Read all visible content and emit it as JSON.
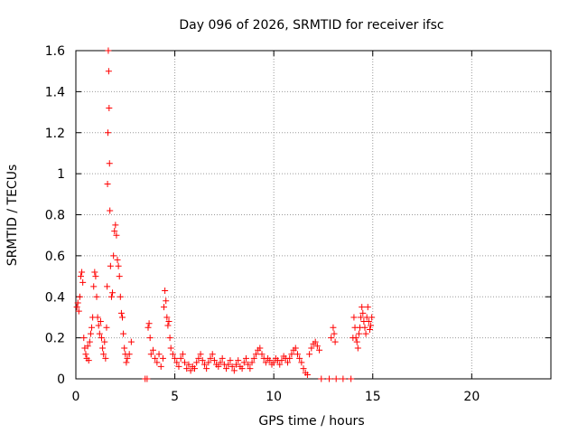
{
  "chart_data": {
    "type": "scatter",
    "title": "Day 096 of 2026, SRMTID for receiver ifsc",
    "xlabel": "GPS time / hours",
    "ylabel": "SRMTID / TECUs",
    "xlim": [
      0,
      24
    ],
    "ylim": [
      0,
      1.6
    ],
    "x_ticks": [
      0,
      5,
      10,
      15,
      20
    ],
    "y_ticks": [
      0,
      0.2,
      0.4,
      0.6,
      0.8,
      1,
      1.2,
      1.4,
      1.6
    ],
    "x_tick_labels": [
      "0",
      "5",
      "10",
      "15",
      "20"
    ],
    "y_tick_labels": [
      "0",
      "0.2",
      "0.4",
      "0.6",
      "0.8",
      "1",
      "1.2",
      "1.4",
      "1.6"
    ],
    "grid": true,
    "marker": "+",
    "color": "#ff0000",
    "series": [
      {
        "points": [
          [
            0.05,
            0.35
          ],
          [
            0.1,
            0.37
          ],
          [
            0.15,
            0.33
          ],
          [
            0.2,
            0.4
          ],
          [
            0.25,
            0.5
          ],
          [
            0.3,
            0.52
          ],
          [
            0.35,
            0.47
          ],
          [
            0.4,
            0.2
          ],
          [
            0.45,
            0.15
          ],
          [
            0.5,
            0.12
          ],
          [
            0.55,
            0.1
          ],
          [
            0.6,
            0.16
          ],
          [
            0.65,
            0.09
          ],
          [
            0.7,
            0.18
          ],
          [
            0.75,
            0.22
          ],
          [
            0.8,
            0.25
          ],
          [
            0.85,
            0.3
          ],
          [
            0.9,
            0.45
          ],
          [
            0.95,
            0.52
          ],
          [
            1.0,
            0.5
          ],
          [
            1.05,
            0.4
          ],
          [
            1.1,
            0.3
          ],
          [
            1.15,
            0.26
          ],
          [
            1.2,
            0.22
          ],
          [
            1.25,
            0.28
          ],
          [
            1.3,
            0.2
          ],
          [
            1.35,
            0.15
          ],
          [
            1.4,
            0.12
          ],
          [
            1.45,
            0.18
          ],
          [
            1.5,
            0.1
          ],
          [
            1.55,
            0.25
          ],
          [
            1.58,
            0.45
          ],
          [
            1.6,
            0.95
          ],
          [
            1.62,
            1.2
          ],
          [
            1.64,
            1.6
          ],
          [
            1.66,
            1.5
          ],
          [
            1.68,
            1.32
          ],
          [
            1.7,
            1.05
          ],
          [
            1.72,
            0.82
          ],
          [
            1.75,
            0.55
          ],
          [
            1.8,
            0.4
          ],
          [
            1.85,
            0.42
          ],
          [
            1.9,
            0.6
          ],
          [
            1.95,
            0.72
          ],
          [
            2.0,
            0.75
          ],
          [
            2.05,
            0.7
          ],
          [
            2.1,
            0.58
          ],
          [
            2.15,
            0.55
          ],
          [
            2.2,
            0.5
          ],
          [
            2.25,
            0.4
          ],
          [
            2.3,
            0.32
          ],
          [
            2.35,
            0.3
          ],
          [
            2.4,
            0.22
          ],
          [
            2.45,
            0.15
          ],
          [
            2.5,
            0.12
          ],
          [
            2.55,
            0.08
          ],
          [
            2.6,
            0.1
          ],
          [
            2.7,
            0.12
          ],
          [
            2.8,
            0.18
          ],
          [
            3.5,
            0.0
          ],
          [
            3.6,
            0.0
          ],
          [
            3.65,
            0.25
          ],
          [
            3.7,
            0.27
          ],
          [
            3.75,
            0.2
          ],
          [
            3.8,
            0.12
          ],
          [
            3.9,
            0.14
          ],
          [
            4.0,
            0.1
          ],
          [
            4.1,
            0.08
          ],
          [
            4.2,
            0.12
          ],
          [
            4.3,
            0.06
          ],
          [
            4.4,
            0.1
          ],
          [
            4.45,
            0.35
          ],
          [
            4.5,
            0.43
          ],
          [
            4.55,
            0.38
          ],
          [
            4.6,
            0.3
          ],
          [
            4.65,
            0.26
          ],
          [
            4.7,
            0.28
          ],
          [
            4.75,
            0.2
          ],
          [
            4.8,
            0.15
          ],
          [
            4.9,
            0.12
          ],
          [
            5.0,
            0.1
          ],
          [
            5.1,
            0.08
          ],
          [
            5.2,
            0.06
          ],
          [
            5.3,
            0.1
          ],
          [
            5.4,
            0.12
          ],
          [
            5.5,
            0.08
          ],
          [
            5.6,
            0.05
          ],
          [
            5.7,
            0.07
          ],
          [
            5.8,
            0.04
          ],
          [
            5.9,
            0.06
          ],
          [
            6.0,
            0.05
          ],
          [
            6.1,
            0.08
          ],
          [
            6.2,
            0.1
          ],
          [
            6.3,
            0.12
          ],
          [
            6.4,
            0.09
          ],
          [
            6.5,
            0.07
          ],
          [
            6.6,
            0.05
          ],
          [
            6.7,
            0.08
          ],
          [
            6.8,
            0.1
          ],
          [
            6.9,
            0.12
          ],
          [
            7.0,
            0.09
          ],
          [
            7.1,
            0.07
          ],
          [
            7.2,
            0.06
          ],
          [
            7.3,
            0.08
          ],
          [
            7.4,
            0.1
          ],
          [
            7.5,
            0.07
          ],
          [
            7.6,
            0.05
          ],
          [
            7.7,
            0.07
          ],
          [
            7.8,
            0.09
          ],
          [
            7.9,
            0.06
          ],
          [
            8.0,
            0.04
          ],
          [
            8.1,
            0.07
          ],
          [
            8.2,
            0.09
          ],
          [
            8.3,
            0.06
          ],
          [
            8.4,
            0.05
          ],
          [
            8.5,
            0.08
          ],
          [
            8.6,
            0.1
          ],
          [
            8.7,
            0.07
          ],
          [
            8.8,
            0.05
          ],
          [
            8.9,
            0.08
          ],
          [
            9.0,
            0.1
          ],
          [
            9.1,
            0.12
          ],
          [
            9.2,
            0.14
          ],
          [
            9.3,
            0.15
          ],
          [
            9.4,
            0.12
          ],
          [
            9.5,
            0.1
          ],
          [
            9.6,
            0.08
          ],
          [
            9.7,
            0.1
          ],
          [
            9.8,
            0.09
          ],
          [
            9.9,
            0.07
          ],
          [
            10.0,
            0.08
          ],
          [
            10.1,
            0.1
          ],
          [
            10.2,
            0.09
          ],
          [
            10.3,
            0.07
          ],
          [
            10.4,
            0.09
          ],
          [
            10.5,
            0.11
          ],
          [
            10.6,
            0.1
          ],
          [
            10.7,
            0.08
          ],
          [
            10.8,
            0.1
          ],
          [
            10.9,
            0.12
          ],
          [
            11.0,
            0.14
          ],
          [
            11.1,
            0.15
          ],
          [
            11.2,
            0.12
          ],
          [
            11.3,
            0.1
          ],
          [
            11.4,
            0.08
          ],
          [
            11.5,
            0.05
          ],
          [
            11.6,
            0.03
          ],
          [
            11.7,
            0.02
          ],
          [
            11.8,
            0.12
          ],
          [
            11.9,
            0.15
          ],
          [
            12.0,
            0.17
          ],
          [
            12.1,
            0.18
          ],
          [
            12.2,
            0.16
          ],
          [
            12.3,
            0.14
          ],
          [
            12.4,
            0.0
          ],
          [
            12.8,
            0.0
          ],
          [
            12.9,
            0.2
          ],
          [
            13.0,
            0.25
          ],
          [
            13.05,
            0.22
          ],
          [
            13.1,
            0.18
          ],
          [
            13.15,
            0.0
          ],
          [
            13.5,
            0.0
          ],
          [
            13.9,
            0.0
          ],
          [
            14.0,
            0.2
          ],
          [
            14.05,
            0.3
          ],
          [
            14.1,
            0.25
          ],
          [
            14.15,
            0.2
          ],
          [
            14.2,
            0.18
          ],
          [
            14.25,
            0.15
          ],
          [
            14.3,
            0.22
          ],
          [
            14.35,
            0.25
          ],
          [
            14.4,
            0.3
          ],
          [
            14.45,
            0.35
          ],
          [
            14.5,
            0.32
          ],
          [
            14.55,
            0.28
          ],
          [
            14.6,
            0.25
          ],
          [
            14.65,
            0.22
          ],
          [
            14.7,
            0.3
          ],
          [
            14.75,
            0.35
          ],
          [
            14.8,
            0.28
          ],
          [
            14.85,
            0.24
          ],
          [
            14.9,
            0.26
          ],
          [
            14.95,
            0.3
          ]
        ]
      }
    ]
  }
}
